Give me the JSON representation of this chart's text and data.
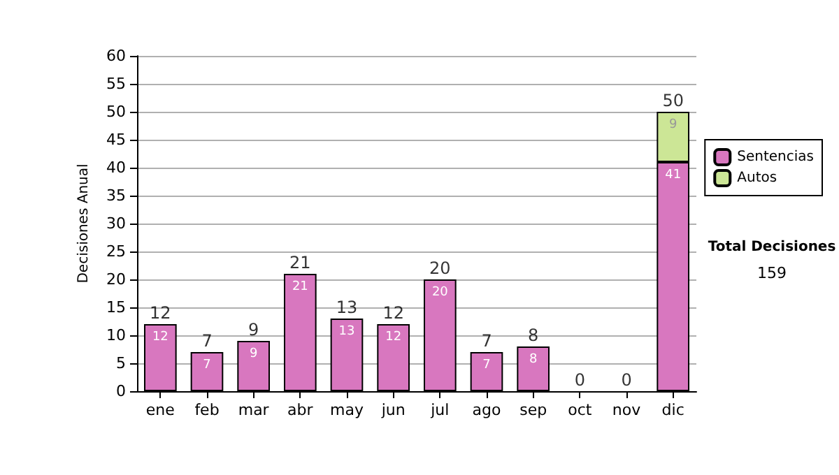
{
  "chart_data": {
    "type": "bar",
    "stacked": true,
    "ylabel": "Decisiones Anual",
    "categories": [
      "ene",
      "feb",
      "mar",
      "abr",
      "may",
      "jun",
      "jul",
      "ago",
      "sep",
      "oct",
      "nov",
      "dic"
    ],
    "series": [
      {
        "name": "Sentencias",
        "color": "#d877bf",
        "values": [
          12,
          7,
          9,
          21,
          13,
          12,
          20,
          7,
          8,
          0,
          0,
          41
        ],
        "value_labels": [
          "12",
          "7",
          "9",
          "21",
          "13",
          "12",
          "20",
          "7",
          "8",
          null,
          null,
          "41"
        ]
      },
      {
        "name": "Autos",
        "color": "#cce696",
        "values": [
          0,
          0,
          0,
          0,
          0,
          0,
          0,
          0,
          0,
          0,
          0,
          9
        ],
        "value_labels": [
          null,
          null,
          null,
          null,
          null,
          null,
          null,
          null,
          null,
          null,
          null,
          "9"
        ]
      }
    ],
    "totals": [
      "12",
      "7",
      "9",
      "21",
      "13",
      "12",
      "20",
      "7",
      "8",
      "0",
      "0",
      "50"
    ],
    "ylim": [
      0,
      60
    ],
    "yticks": [
      0,
      5,
      10,
      15,
      20,
      25,
      30,
      35,
      40,
      45,
      50,
      55,
      60
    ],
    "grid": "y",
    "legend": "right",
    "annotations": [
      "Total Decisiones",
      "159"
    ]
  }
}
